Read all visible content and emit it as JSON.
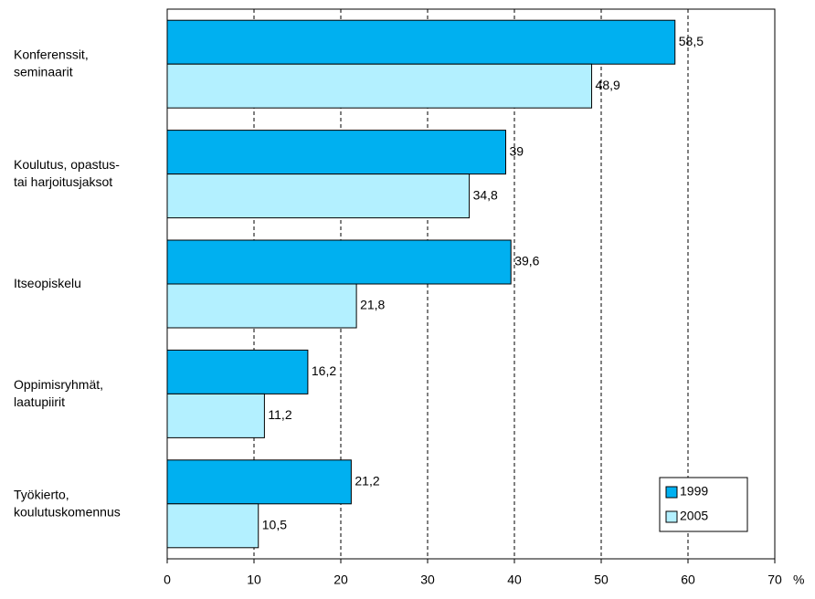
{
  "chart_data": {
    "type": "hbar",
    "categories": [
      "Konferenssit,\nseminaarit",
      "Koulutus, opastus-\ntai harjoitusjaksot",
      "Itseopiskelu",
      "Oppimisryhmät,\nlaatupiirit",
      "Työkierto,\nkoulutuskomennus"
    ],
    "series": [
      {
        "name": "1999",
        "color": "#00b0f0",
        "values": [
          58.5,
          39,
          39.6,
          16.2,
          21.2
        ],
        "value_labels": [
          "58,5",
          "39",
          "39,6",
          "16,2",
          "21,2"
        ]
      },
      {
        "name": "2005",
        "color": "#b3f0ff",
        "values": [
          48.9,
          34.8,
          21.8,
          11.2,
          10.5
        ],
        "value_labels": [
          "48,9",
          "34,8",
          "21,8",
          "11,2",
          "10,5"
        ]
      }
    ],
    "xlim": [
      0,
      70
    ],
    "xticks": [
      0,
      10,
      20,
      30,
      40,
      50,
      60,
      70
    ],
    "x_unit": "%",
    "grid": true,
    "legend": "lower-right"
  }
}
